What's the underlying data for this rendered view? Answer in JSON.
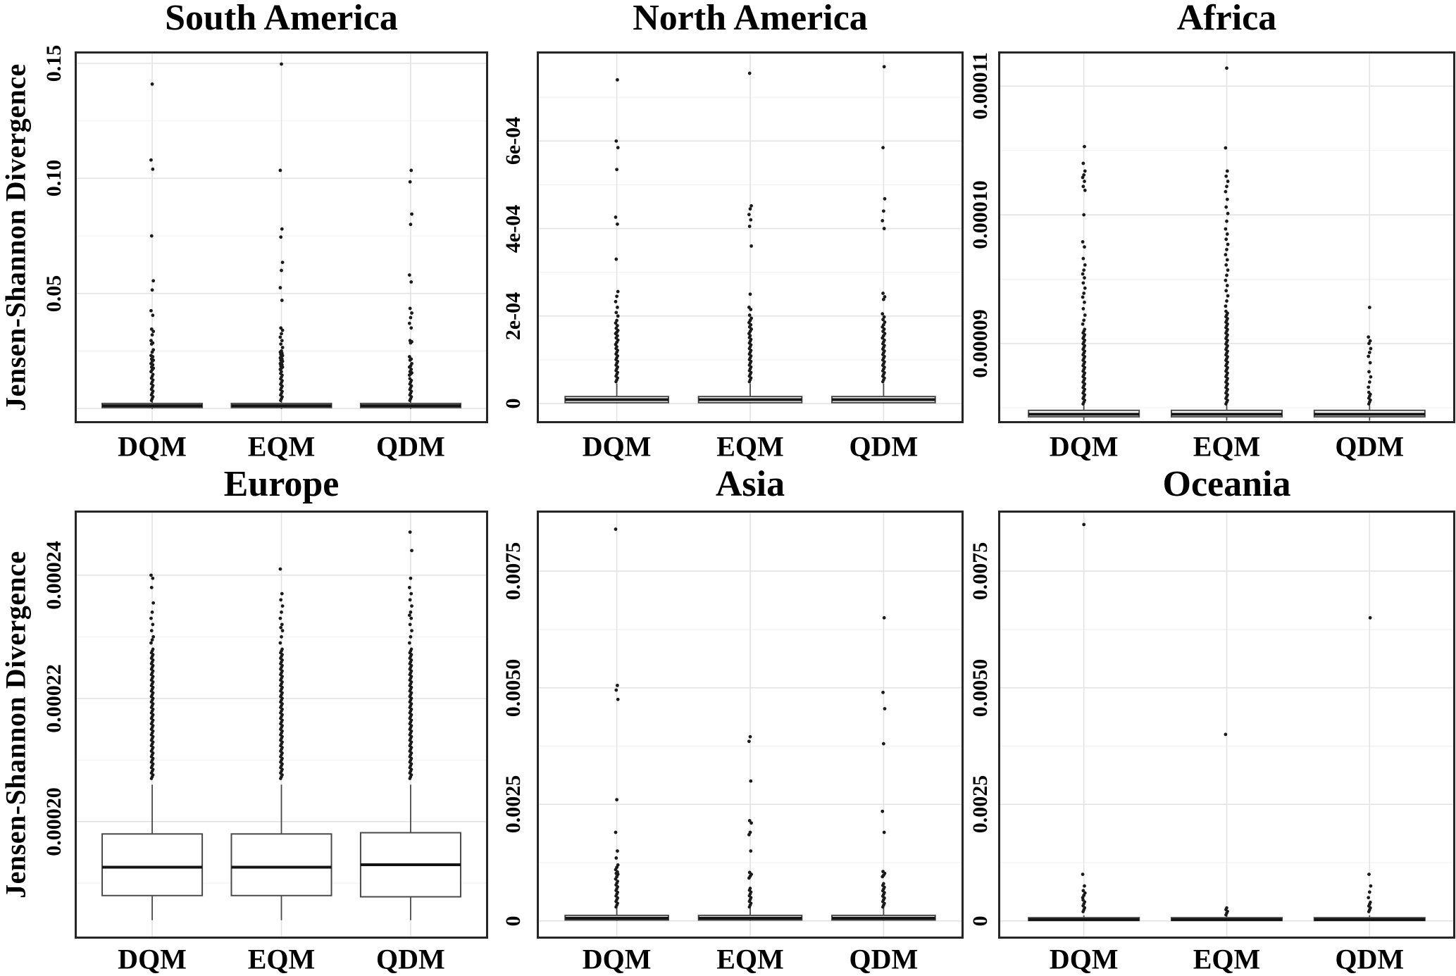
{
  "figure": {
    "y_axis_label": "Jensen-Shannon Divergence",
    "categories": [
      "DQM",
      "EQM",
      "QDM"
    ]
  },
  "colors": {
    "background": "#ffffff",
    "text": "#000000",
    "panel_border": "#262626",
    "major_grid": "#e3e3e3",
    "minor_grid": "#f2f2f2",
    "box_stroke": "#4a4a4a",
    "median": "#141414",
    "point": "#1a1a1a"
  },
  "chart_data": [
    {
      "type": "boxplot",
      "title": "South America",
      "ylabel": "Jensen-Shannon Divergence",
      "categories": [
        "DQM",
        "EQM",
        "QDM"
      ],
      "ylim": [
        -0.0064,
        0.1552
      ],
      "tick_step": 0.05,
      "ytick_values": [
        0.05,
        0.1,
        0.15
      ],
      "ytick_labels": [
        "0.05",
        "0.10",
        "0.15"
      ],
      "boxes": [
        {
          "category": "DQM",
          "q1": 0.0004,
          "median": 0.0012,
          "q3": 0.0022,
          "whisker_low": -0.0002,
          "whisker_high": 0.0032,
          "dense_outliers": [
            0.0035,
            0.0148
          ],
          "outliers": [
            0.016,
            0.0168,
            0.0175,
            0.018,
            0.019,
            0.0195,
            0.0205,
            0.021,
            0.0215,
            0.0225,
            0.023,
            0.0245,
            0.0255,
            0.028,
            0.0285,
            0.0295,
            0.032,
            0.0335,
            0.0345,
            0.0405,
            0.0425,
            0.0515,
            0.0555,
            0.075,
            0.104,
            0.108,
            0.141
          ]
        },
        {
          "category": "EQM",
          "q1": 0.0004,
          "median": 0.0012,
          "q3": 0.0022,
          "whisker_low": -0.0002,
          "whisker_high": 0.0032,
          "dense_outliers": [
            0.0035,
            0.016
          ],
          "outliers": [
            0.017,
            0.0175,
            0.018,
            0.0185,
            0.019,
            0.0195,
            0.02,
            0.0205,
            0.021,
            0.0215,
            0.022,
            0.0225,
            0.023,
            0.0235,
            0.024,
            0.0245,
            0.025,
            0.0265,
            0.028,
            0.0295,
            0.031,
            0.0325,
            0.034,
            0.035,
            0.047,
            0.0525,
            0.06,
            0.0635,
            0.0745,
            0.078,
            0.1035,
            0.1497
          ]
        },
        {
          "category": "QDM",
          "q1": 0.0004,
          "median": 0.0012,
          "q3": 0.0022,
          "whisker_low": -0.0002,
          "whisker_high": 0.0032,
          "dense_outliers": [
            0.0035,
            0.013
          ],
          "outliers": [
            0.0145,
            0.015,
            0.0155,
            0.016,
            0.017,
            0.018,
            0.0185,
            0.0195,
            0.021,
            0.0215,
            0.0225,
            0.0285,
            0.029,
            0.0295,
            0.035,
            0.037,
            0.0395,
            0.0415,
            0.0435,
            0.055,
            0.058,
            0.08,
            0.0845,
            0.0985,
            0.1035
          ]
        }
      ]
    },
    {
      "type": "boxplot",
      "title": "North America",
      "ylabel": "",
      "categories": [
        "DQM",
        "EQM",
        "QDM"
      ],
      "ylim": [
        -4.5e-05,
        0.000805
      ],
      "tick_step": 0.0002,
      "ytick_values": [
        0,
        0.0002,
        0.0004,
        0.0006
      ],
      "ytick_labels": [
        "0",
        "2e-04",
        "4e-04",
        "6e-04"
      ],
      "boxes": [
        {
          "category": "DQM",
          "q1": 2e-06,
          "median": 9e-06,
          "q3": 1.6e-05,
          "whisker_low": 0,
          "whisker_high": 4.6e-05,
          "dense_outliers": [
            5e-05,
            0.00013
          ],
          "outliers": [
            0.000135,
            0.00014,
            0.000145,
            0.00015,
            0.000155,
            0.00016,
            0.000163,
            0.000167,
            0.000172,
            0.000178,
            0.000184,
            0.00019,
            0.0002,
            0.000208,
            0.00022,
            0.000233,
            0.000245,
            0.000256,
            0.00033,
            0.00041,
            0.000426,
            0.000535,
            0.000585,
            0.0006,
            0.00074
          ]
        },
        {
          "category": "EQM",
          "q1": 2e-06,
          "median": 9e-06,
          "q3": 1.6e-05,
          "whisker_low": 0,
          "whisker_high": 4.6e-05,
          "dense_outliers": [
            5e-05,
            0.000155
          ],
          "outliers": [
            0.00016,
            0.000165,
            0.00017,
            0.000175,
            0.00018,
            0.000185,
            0.00019,
            0.000195,
            0.000202,
            0.000215,
            0.00022,
            0.00025,
            0.00036,
            0.000405,
            0.00042,
            0.000432,
            0.000445,
            0.000452,
            0.000755
          ]
        },
        {
          "category": "QDM",
          "q1": 2e-06,
          "median": 9e-06,
          "q3": 1.6e-05,
          "whisker_low": 0,
          "whisker_high": 4.6e-05,
          "dense_outliers": [
            5e-05,
            0.000145
          ],
          "outliers": [
            0.00015,
            0.000155,
            0.00016,
            0.000165,
            0.00017,
            0.000175,
            0.00018,
            0.000186,
            0.000192,
            0.000198,
            0.000205,
            0.000238,
            0.000244,
            0.000252,
            0.0004,
            0.000418,
            0.00044,
            0.000468,
            0.000585,
            0.00077
          ]
        }
      ]
    },
    {
      "type": "boxplot",
      "title": "Africa",
      "ylabel": "",
      "categories": [
        "DQM",
        "EQM",
        "QDM"
      ],
      "ylim": [
        8.38e-05,
        0.0001127
      ],
      "tick_step": 1e-05,
      "ytick_values": [
        9e-05,
        0.0001,
        0.00011
      ],
      "ytick_labels": [
        "0.00009",
        "0.00010",
        "0.00011"
      ],
      "boxes": [
        {
          "category": "DQM",
          "q1": 8.43e-05,
          "median": 8.45e-05,
          "q3": 8.48e-05,
          "whisker_low": 8.4e-05,
          "whisker_high": 8.52e-05,
          "dense_outliers": [
            8.53e-05,
            9.11e-05
          ],
          "outliers": [
            9.15e-05,
            9.18e-05,
            9.22e-05,
            9.27e-05,
            9.32e-05,
            9.36e-05,
            9.39e-05,
            9.43e-05,
            9.47e-05,
            9.51e-05,
            9.54e-05,
            9.57e-05,
            9.61e-05,
            9.66e-05,
            9.75e-05,
            9.79e-05,
            0.0001,
            0.0001019,
            0.0001022,
            0.0001026,
            0.0001029,
            0.0001031,
            0.0001034,
            0.000104,
            0.0001053
          ]
        },
        {
          "category": "EQM",
          "q1": 8.43e-05,
          "median": 8.45e-05,
          "q3": 8.48e-05,
          "whisker_low": 8.4e-05,
          "whisker_high": 8.52e-05,
          "dense_outliers": [
            8.53e-05,
            9.25e-05
          ],
          "outliers": [
            9.29e-05,
            9.33e-05,
            9.37e-05,
            9.41e-05,
            9.45e-05,
            9.49e-05,
            9.53e-05,
            9.57e-05,
            9.61e-05,
            9.65e-05,
            9.69e-05,
            9.73e-05,
            9.77e-05,
            9.81e-05,
            9.85e-05,
            9.89e-05,
            9.95e-05,
            0.0001001,
            0.0001006,
            0.0001012,
            0.0001018,
            0.0001022,
            0.0001026,
            0.000103,
            0.0001034,
            0.0001052,
            0.0001114
          ]
        },
        {
          "category": "QDM",
          "q1": 8.43e-05,
          "median": 8.45e-05,
          "q3": 8.48e-05,
          "whisker_low": 8.4e-05,
          "whisker_high": 8.52e-05,
          "dense_outliers": [
            8.53e-05,
            8.62e-05
          ],
          "outliers": [
            8.66e-05,
            8.7e-05,
            8.74e-05,
            8.78e-05,
            8.85e-05,
            8.9e-05,
            8.93e-05,
            8.96e-05,
            9e-05,
            9.02e-05,
            9.05e-05,
            9.28e-05
          ]
        }
      ]
    },
    {
      "type": "boxplot",
      "title": "Europe",
      "ylabel": "Jensen-Shannon Divergence",
      "categories": [
        "DQM",
        "EQM",
        "QDM"
      ],
      "ylim": [
        0.000181,
        0.0002505
      ],
      "tick_step": 2e-05,
      "ytick_values": [
        0.0002,
        0.00022,
        0.00024
      ],
      "ytick_labels": [
        "0.00020",
        "0.00022",
        "0.00024"
      ],
      "boxes": [
        {
          "category": "DQM",
          "q1": 0.000188,
          "median": 0.0001926,
          "q3": 0.000198,
          "whisker_low": 0.000184,
          "whisker_high": 0.000206,
          "dense_outliers": [
            0.000207,
            0.000228
          ],
          "outliers": [
            0.000229,
            0.0002295,
            0.00023,
            0.000231,
            0.000232,
            0.000233,
            0.000234,
            0.0002355,
            0.000238,
            0.0002395,
            0.00024
          ]
        },
        {
          "category": "EQM",
          "q1": 0.000188,
          "median": 0.0001926,
          "q3": 0.000198,
          "whisker_low": 0.000184,
          "whisker_high": 0.000206,
          "dense_outliers": [
            0.000207,
            0.000228
          ],
          "outliers": [
            0.000229,
            0.00023,
            0.000231,
            0.0002315,
            0.000232,
            0.000233,
            0.000234,
            0.000235,
            0.000236,
            0.000237,
            0.000241
          ]
        },
        {
          "category": "QDM",
          "q1": 0.0001878,
          "median": 0.000193,
          "q3": 0.0001982,
          "whisker_low": 0.000184,
          "whisker_high": 0.000206,
          "dense_outliers": [
            0.000207,
            0.000228
          ],
          "outliers": [
            0.000229,
            0.00023,
            0.000231,
            0.000232,
            0.000233,
            0.0002335,
            0.000234,
            0.000235,
            0.000236,
            0.000237,
            0.000238,
            0.0002395,
            0.000244,
            0.000247
          ]
        }
      ]
    },
    {
      "type": "boxplot",
      "title": "Asia",
      "ylabel": "",
      "categories": [
        "DQM",
        "EQM",
        "QDM"
      ],
      "ylim": [
        -0.00038,
        0.0088
      ],
      "tick_step": 0.0025,
      "ytick_values": [
        0,
        0.0025,
        0.005,
        0.0075
      ],
      "ytick_labels": [
        "0",
        "0.0025",
        "0.0050",
        "0.0075"
      ],
      "boxes": [
        {
          "category": "DQM",
          "q1": 2e-05,
          "median": 6e-05,
          "q3": 0.00012,
          "whisker_low": 0,
          "whisker_high": 0.00028,
          "dense_outliers": [
            0.0003,
            0.00085
          ],
          "outliers": [
            0.0009,
            0.00095,
            0.001,
            0.00102,
            0.00105,
            0.0011,
            0.00115,
            0.0012,
            0.00135,
            0.0015,
            0.0019,
            0.0026,
            0.00475,
            0.00495,
            0.00505,
            0.0084
          ]
        },
        {
          "category": "EQM",
          "q1": 2e-05,
          "median": 6e-05,
          "q3": 0.00012,
          "whisker_low": 0,
          "whisker_high": 0.00028,
          "dense_outliers": [
            0.0003,
            0.0007
          ],
          "outliers": [
            0.00092,
            0.00096,
            0.001,
            0.00104,
            0.0015,
            0.00185,
            0.0019,
            0.0021,
            0.00215,
            0.003,
            0.00385,
            0.00395
          ]
        },
        {
          "category": "QDM",
          "q1": 2e-05,
          "median": 6e-05,
          "q3": 0.00012,
          "whisker_low": 0,
          "whisker_high": 0.00028,
          "dense_outliers": [
            0.0003,
            0.0008
          ],
          "outliers": [
            0.00095,
            0.00098,
            0.00102,
            0.00106,
            0.0019,
            0.00235,
            0.0038,
            0.00455,
            0.0049,
            0.0065
          ]
        }
      ]
    },
    {
      "type": "boxplot",
      "title": "Oceania",
      "ylabel": "",
      "categories": [
        "DQM",
        "EQM",
        "QDM"
      ],
      "ylim": [
        -0.00038,
        0.0088
      ],
      "tick_step": 0.0025,
      "ytick_values": [
        0,
        0.0025,
        0.005,
        0.0075
      ],
      "ytick_labels": [
        "0",
        "0.0025",
        "0.0050",
        "0.0075"
      ],
      "boxes": [
        {
          "category": "DQM",
          "q1": 1e-05,
          "median": 3e-05,
          "q3": 7e-05,
          "whisker_low": 0,
          "whisker_high": 0.00012,
          "dense_outliers": [
            0.0002,
            0.00045
          ],
          "outliers": [
            0.0005,
            0.00055,
            0.0006,
            0.00065,
            0.00075,
            0.001,
            0.0085
          ]
        },
        {
          "category": "EQM",
          "q1": 1e-05,
          "median": 3e-05,
          "q3": 7e-05,
          "whisker_low": 0,
          "whisker_high": 0.00012,
          "dense_outliers": [
            0.00013,
            0.00028
          ],
          "outliers": [
            0.004
          ]
        },
        {
          "category": "QDM",
          "q1": 1e-05,
          "median": 3e-05,
          "q3": 7e-05,
          "whisker_low": 0,
          "whisker_high": 0.00012,
          "dense_outliers": [
            0.0002,
            0.0004
          ],
          "outliers": [
            0.0005,
            0.00062,
            0.00075,
            0.001,
            0.0065
          ]
        }
      ]
    }
  ]
}
